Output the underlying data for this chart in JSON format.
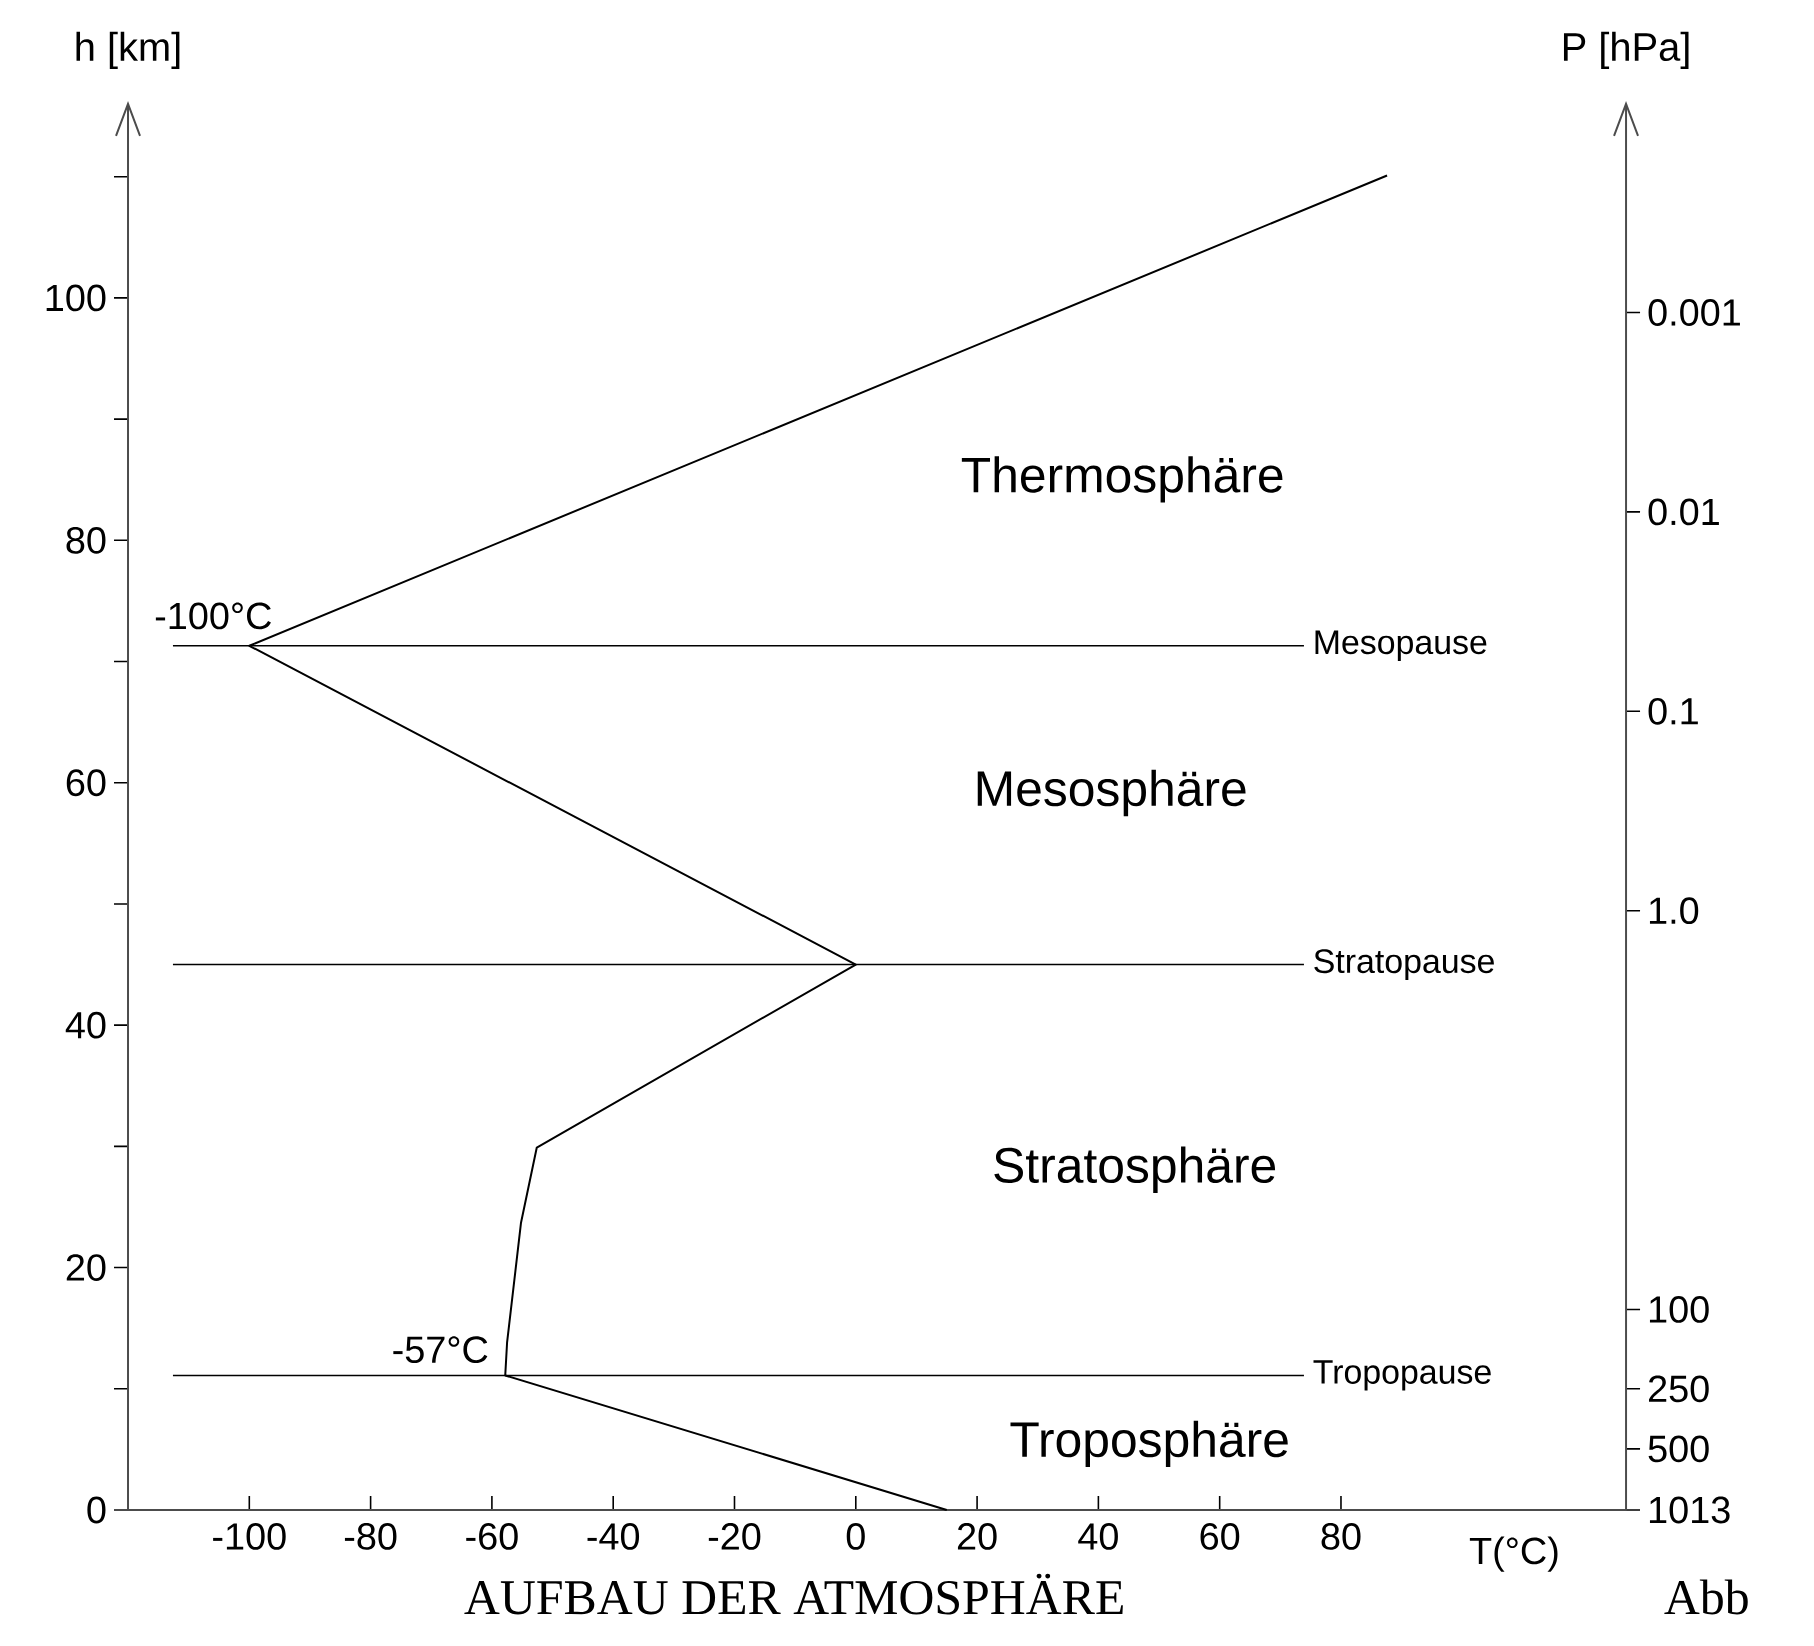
{
  "chart_data": {
    "type": "line",
    "xlabel": "T(°C)",
    "ylabel": "h [km]",
    "y2label": "P [hPa]",
    "series": [
      {
        "color": "#000000",
        "x": [
          15,
          -57.8,
          -57.5,
          -55.2,
          -52.6,
          0,
          -100,
          87.6
        ],
        "values": [
          0,
          11.1,
          13.8,
          23.7,
          29.9,
          45,
          71.3,
          110.1
        ]
      }
    ],
    "xlim": [
      -120,
      127
    ],
    "ylim": [
      0,
      116
    ],
    "y2lim": [
      1013,
      9e-05
    ],
    "xticks": [
      -100,
      -80,
      -60,
      -40,
      -20,
      0,
      20,
      40,
      60,
      80
    ],
    "yticks": [
      0,
      {
        "value": 10,
        "label": null
      },
      20,
      {
        "value": 30,
        "label": null
      },
      40,
      {
        "value": 50,
        "label": null
      },
      60,
      {
        "value": 70,
        "label": null
      },
      80,
      {
        "value": 90,
        "label": null
      },
      100,
      {
        "value": 110,
        "label": null
      }
    ],
    "y2ticks": [
      1013,
      500,
      250,
      100,
      {
        "value": 1,
        "label": "1.0"
      },
      0.1,
      0.01,
      0.001
    ],
    "log": "y2",
    "ref_lines": [
      {
        "axis": "y",
        "value": 11.1,
        "label": "Tropopause",
        "color": "#000000"
      },
      {
        "axis": "y",
        "value": 45,
        "label": "Stratopause",
        "color": "#000000"
      },
      {
        "axis": "y",
        "value": 71.3,
        "label": "Mesopause",
        "color": "#000000"
      }
    ],
    "annotations": [
      "Thermosphäre",
      "Mesosphäre",
      "Stratosphäre",
      "Troposphäre",
      {
        "text": "-100°C",
        "x": -100,
        "y": 71.3
      },
      {
        "text": "-57°C",
        "x": -57.8,
        "y": 11.1
      },
      "AUFBAU DER ATMOSPHÄRE",
      "Abb"
    ],
    "marker": "none",
    "line_style": "solid",
    "grid": false
  }
}
